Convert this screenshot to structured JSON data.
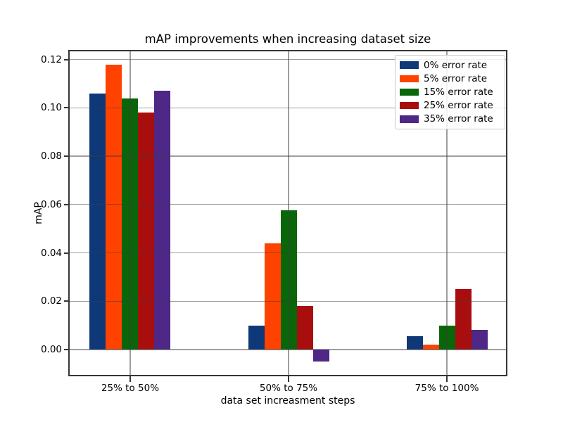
{
  "figure": {
    "background": "#ffffff",
    "axis_color": "#363636",
    "grid_color": "#9f9f9f"
  },
  "chart_data": {
    "type": "bar",
    "title": "mAP improvements when increasing dataset size",
    "xlabel": "data set increasment steps",
    "ylabel": "mAP",
    "categories": [
      "25% to 50%",
      "50% to 75%",
      "75% to 100%"
    ],
    "series": [
      {
        "name": "0% error rate",
        "color": "#0e3878",
        "values": [
          0.106,
          0.01,
          0.0055
        ]
      },
      {
        "name": "5% error rate",
        "color": "#ff4200",
        "values": [
          0.118,
          0.044,
          0.002
        ]
      },
      {
        "name": "15% error rate",
        "color": "#096609",
        "values": [
          0.104,
          0.0575,
          0.01
        ]
      },
      {
        "name": "25% error rate",
        "color": "#a90e0e",
        "values": [
          0.098,
          0.018,
          0.025
        ]
      },
      {
        "name": "35% error rate",
        "color": "#4e2787",
        "values": [
          0.107,
          -0.005,
          0.008
        ]
      }
    ],
    "yticks": [
      0.0,
      0.02,
      0.04,
      0.06,
      0.08,
      0.1,
      0.12
    ],
    "ytick_labels": [
      "0.00",
      "0.02",
      "0.04",
      "0.06",
      "0.08",
      "0.10",
      "0.12"
    ],
    "ylim": [
      -0.0105,
      0.1234
    ],
    "xlim": [
      -0.382,
      2.373
    ],
    "grid": true,
    "legend_position": "upper right"
  }
}
